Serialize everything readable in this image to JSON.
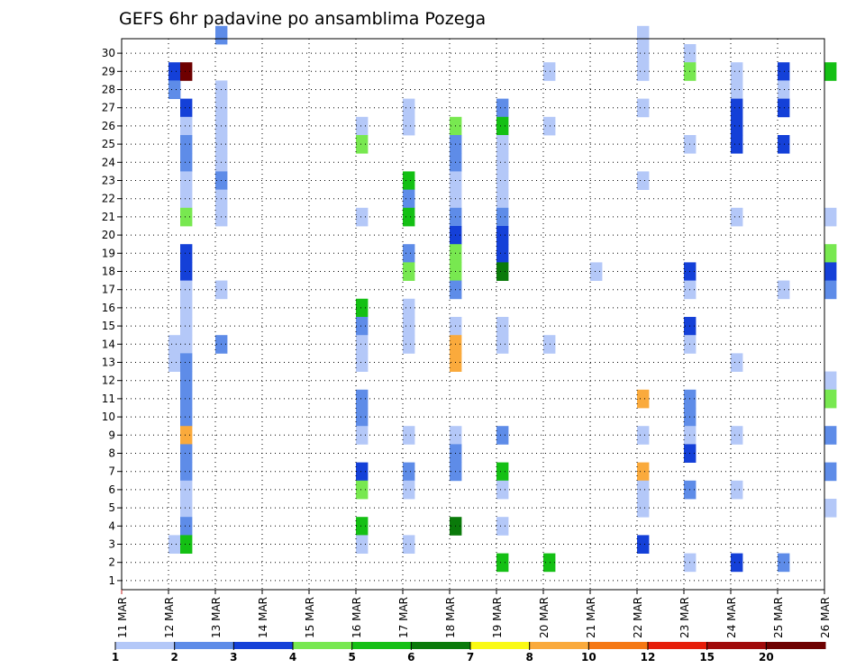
{
  "chart_data": {
    "type": "heatmap",
    "title": "GEFS 6hr padavine po ansamblima Pozega",
    "xlabel": "",
    "ylabel": "",
    "x_tick_labels": [
      "11 MAR",
      "12 MAR",
      "13 MAR",
      "14 MAR",
      "15 MAR",
      "16 MAR",
      "17 MAR",
      "18 MAR",
      "19 MAR",
      "20 MAR",
      "21 MAR",
      "22 MAR",
      "23 MAR",
      "24 MAR",
      "25 MAR",
      "26 MAR"
    ],
    "y_tick_labels": [
      "1",
      "2",
      "3",
      "4",
      "5",
      "6",
      "7",
      "8",
      "9",
      "10",
      "11",
      "12",
      "13",
      "14",
      "15",
      "16",
      "17",
      "18",
      "19",
      "20",
      "21",
      "22",
      "23",
      "24",
      "25",
      "26",
      "27",
      "28",
      "29",
      "30"
    ],
    "xlim": [
      0,
      60
    ],
    "ylim": [
      0,
      30
    ],
    "grid": true,
    "levels": [
      "1",
      "2",
      "3",
      "4",
      "5",
      "6",
      "7",
      "8",
      "10",
      "12",
      "15",
      "20"
    ],
    "level_colors": [
      "#b4c8f8",
      "#5e8ce8",
      "#1440d8",
      "#78e850",
      "#14c014",
      "#0a7a0a",
      "#fafa14",
      "#faaa3c",
      "#f57814",
      "#e61e0a",
      "#a00a0a",
      "#6e0000"
    ],
    "cells": [
      [
        1,
        0,
        28,
        3
      ],
      [
        1,
        0,
        27,
        2
      ],
      [
        1,
        0,
        13,
        1
      ],
      [
        1,
        0,
        12,
        1
      ],
      [
        1,
        0,
        2,
        1
      ],
      [
        1,
        1,
        28,
        12
      ],
      [
        1,
        1,
        26,
        3
      ],
      [
        1,
        1,
        25,
        1
      ],
      [
        1,
        1,
        24,
        2
      ],
      [
        1,
        1,
        23,
        2
      ],
      [
        1,
        1,
        22,
        1
      ],
      [
        1,
        1,
        21,
        1
      ],
      [
        1,
        1,
        20,
        4
      ],
      [
        1,
        1,
        18,
        3
      ],
      [
        1,
        1,
        17,
        3
      ],
      [
        1,
        1,
        16,
        1
      ],
      [
        1,
        1,
        15,
        1
      ],
      [
        1,
        1,
        14,
        1
      ],
      [
        1,
        1,
        13,
        1
      ],
      [
        1,
        1,
        12,
        2
      ],
      [
        1,
        1,
        11,
        2
      ],
      [
        1,
        1,
        10,
        2
      ],
      [
        1,
        1,
        9,
        2
      ],
      [
        1,
        1,
        8,
        8
      ],
      [
        1,
        1,
        7,
        2
      ],
      [
        1,
        1,
        6,
        2
      ],
      [
        1,
        1,
        5,
        1
      ],
      [
        1,
        1,
        4,
        1
      ],
      [
        1,
        1,
        3,
        2
      ],
      [
        1,
        1,
        2,
        5
      ],
      [
        2,
        0,
        30,
        2
      ],
      [
        2,
        0,
        27,
        1
      ],
      [
        2,
        0,
        26,
        1
      ],
      [
        2,
        0,
        25,
        1
      ],
      [
        2,
        0,
        24,
        1
      ],
      [
        2,
        0,
        23,
        1
      ],
      [
        2,
        0,
        22,
        2
      ],
      [
        2,
        0,
        21,
        1
      ],
      [
        2,
        0,
        20,
        1
      ],
      [
        2,
        0,
        16,
        1
      ],
      [
        2,
        0,
        13,
        2
      ],
      [
        5,
        0,
        25,
        1
      ],
      [
        5,
        0,
        24,
        4
      ],
      [
        5,
        0,
        20,
        1
      ],
      [
        5,
        0,
        15,
        5
      ],
      [
        5,
        0,
        14,
        2
      ],
      [
        5,
        0,
        13,
        1
      ],
      [
        5,
        0,
        12,
        1
      ],
      [
        5,
        0,
        10,
        2
      ],
      [
        5,
        0,
        9,
        2
      ],
      [
        5,
        0,
        8,
        1
      ],
      [
        5,
        0,
        6,
        3
      ],
      [
        5,
        0,
        5,
        4
      ],
      [
        5,
        0,
        3,
        5
      ],
      [
        5,
        0,
        2,
        1
      ],
      [
        6,
        0,
        26,
        1
      ],
      [
        6,
        0,
        25,
        1
      ],
      [
        6,
        0,
        22,
        5
      ],
      [
        6,
        0,
        21,
        2
      ],
      [
        6,
        0,
        20,
        5
      ],
      [
        6,
        0,
        18,
        2
      ],
      [
        6,
        0,
        17,
        4
      ],
      [
        6,
        0,
        15,
        1
      ],
      [
        6,
        0,
        14,
        1
      ],
      [
        6,
        0,
        13,
        1
      ],
      [
        6,
        0,
        8,
        1
      ],
      [
        6,
        0,
        6,
        2
      ],
      [
        6,
        0,
        5,
        1
      ],
      [
        6,
        0,
        2,
        1
      ],
      [
        7,
        0,
        25,
        4
      ],
      [
        7,
        0,
        24,
        2
      ],
      [
        7,
        0,
        23,
        2
      ],
      [
        7,
        0,
        22,
        1
      ],
      [
        7,
        0,
        21,
        1
      ],
      [
        7,
        0,
        20,
        2
      ],
      [
        7,
        0,
        19,
        3
      ],
      [
        7,
        0,
        18,
        4
      ],
      [
        7,
        0,
        17,
        4
      ],
      [
        7,
        0,
        16,
        2
      ],
      [
        7,
        0,
        14,
        1
      ],
      [
        7,
        0,
        13,
        8
      ],
      [
        7,
        0,
        12,
        8
      ],
      [
        7,
        0,
        8,
        1
      ],
      [
        7,
        0,
        7,
        2
      ],
      [
        7,
        0,
        6,
        2
      ],
      [
        7,
        0,
        3,
        6
      ],
      [
        8,
        0,
        26,
        2
      ],
      [
        8,
        0,
        25,
        5
      ],
      [
        8,
        0,
        24,
        1
      ],
      [
        8,
        0,
        23,
        1
      ],
      [
        8,
        0,
        22,
        1
      ],
      [
        8,
        0,
        21,
        1
      ],
      [
        8,
        0,
        20,
        2
      ],
      [
        8,
        0,
        19,
        3
      ],
      [
        8,
        0,
        18,
        3
      ],
      [
        8,
        0,
        17,
        6
      ],
      [
        8,
        0,
        14,
        1
      ],
      [
        8,
        0,
        13,
        1
      ],
      [
        8,
        0,
        8,
        2
      ],
      [
        8,
        0,
        6,
        5
      ],
      [
        8,
        0,
        5,
        1
      ],
      [
        8,
        0,
        3,
        1
      ],
      [
        8,
        0,
        1,
        5
      ],
      [
        9,
        0,
        28,
        1
      ],
      [
        9,
        0,
        25,
        1
      ],
      [
        9,
        0,
        13,
        1
      ],
      [
        9,
        0,
        1,
        5
      ],
      [
        10,
        0,
        17,
        1
      ],
      [
        11,
        0,
        30,
        1
      ],
      [
        11,
        0,
        29,
        1
      ],
      [
        11,
        0,
        28,
        1
      ],
      [
        11,
        0,
        26,
        1
      ],
      [
        11,
        0,
        22,
        1
      ],
      [
        11,
        0,
        10,
        8
      ],
      [
        11,
        0,
        8,
        1
      ],
      [
        11,
        0,
        6,
        8
      ],
      [
        11,
        0,
        5,
        1
      ],
      [
        11,
        0,
        4,
        1
      ],
      [
        11,
        0,
        2,
        3
      ],
      [
        12,
        0,
        29,
        1
      ],
      [
        12,
        0,
        28,
        4
      ],
      [
        12,
        0,
        24,
        1
      ],
      [
        12,
        0,
        17,
        3
      ],
      [
        12,
        0,
        16,
        1
      ],
      [
        12,
        0,
        14,
        3
      ],
      [
        12,
        0,
        13,
        1
      ],
      [
        12,
        0,
        10,
        2
      ],
      [
        12,
        0,
        9,
        2
      ],
      [
        12,
        0,
        8,
        1
      ],
      [
        12,
        0,
        7,
        3
      ],
      [
        12,
        0,
        5,
        2
      ],
      [
        12,
        0,
        1,
        1
      ],
      [
        13,
        0,
        28,
        1
      ],
      [
        13,
        0,
        27,
        1
      ],
      [
        13,
        0,
        26,
        3
      ],
      [
        13,
        0,
        25,
        3
      ],
      [
        13,
        0,
        24,
        3
      ],
      [
        13,
        0,
        20,
        1
      ],
      [
        13,
        0,
        12,
        1
      ],
      [
        13,
        0,
        8,
        1
      ],
      [
        13,
        0,
        5,
        1
      ],
      [
        13,
        0,
        1,
        3
      ],
      [
        14,
        0,
        28,
        3
      ],
      [
        14,
        0,
        27,
        1
      ],
      [
        14,
        0,
        26,
        3
      ],
      [
        14,
        0,
        24,
        3
      ],
      [
        14,
        0,
        16,
        1
      ],
      [
        14,
        0,
        1,
        2
      ],
      [
        15,
        0,
        28,
        5
      ],
      [
        15,
        0,
        20,
        1
      ],
      [
        15,
        0,
        18,
        4
      ],
      [
        15,
        0,
        17,
        3
      ],
      [
        15,
        0,
        16,
        2
      ],
      [
        15,
        0,
        11,
        1
      ],
      [
        15,
        0,
        10,
        4
      ],
      [
        15,
        0,
        8,
        2
      ],
      [
        15,
        0,
        6,
        2
      ],
      [
        15,
        0,
        4,
        1
      ]
    ]
  }
}
